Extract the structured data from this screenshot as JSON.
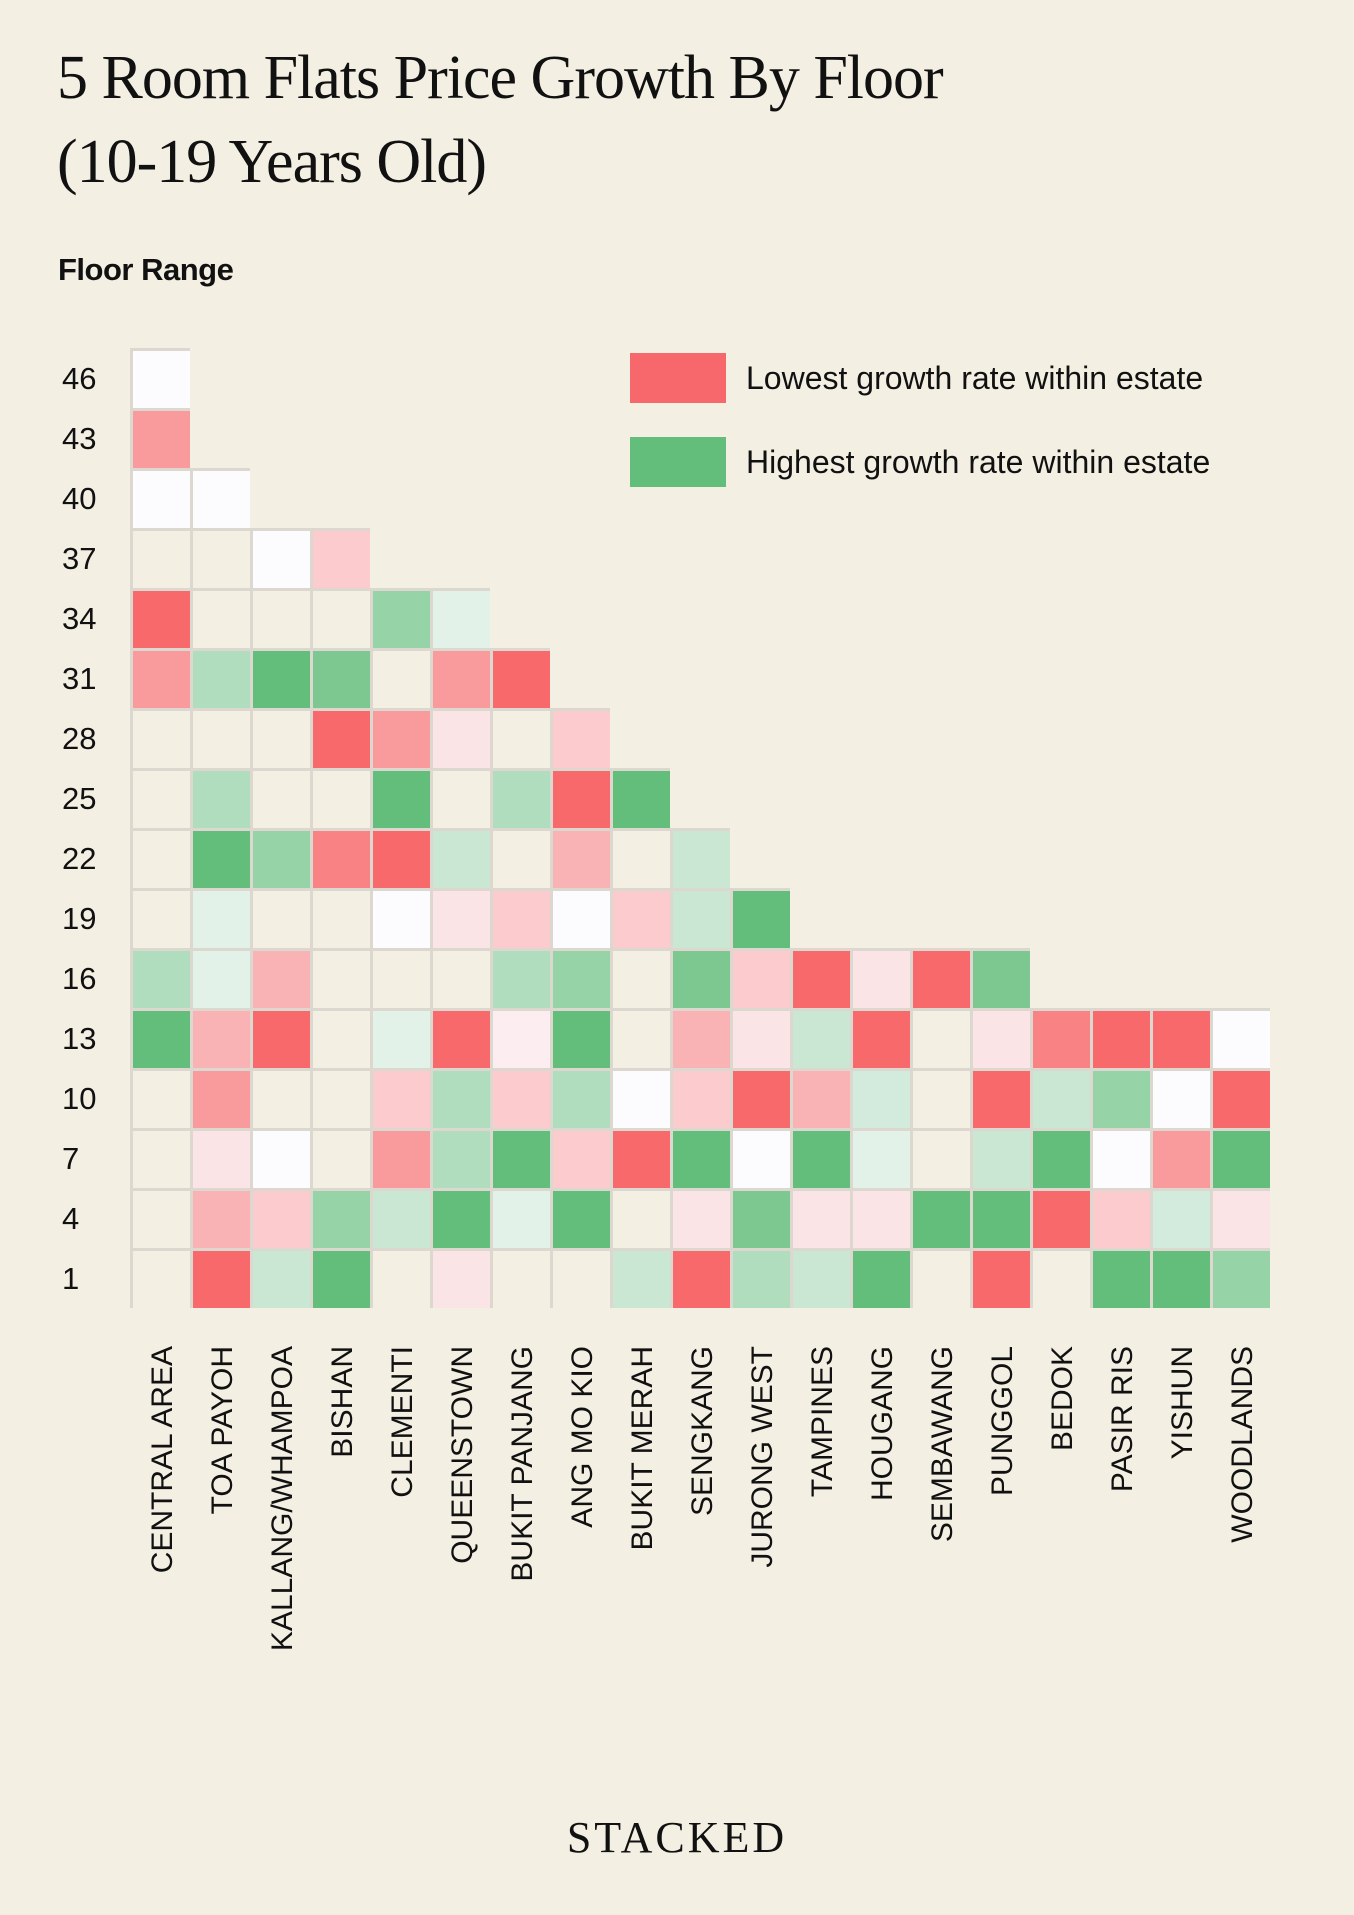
{
  "chart_data": {
    "type": "heatmap",
    "title": "5 Room Flats Price Growth By Floor",
    "subtitle": "(10-19 Years Old)",
    "ylabel": "Floor Range",
    "xlabel": "",
    "x": [
      "CENTRAL AREA",
      "TOA PAYOH",
      "KALLANG/WHAMPOA",
      "BISHAN",
      "CLEMENTI",
      "QUEENSTOWN",
      "BUKIT PANJANG",
      "ANG MO KIO",
      "BUKIT MERAH",
      "SENGKANG",
      "JURONG WEST",
      "TAMPINES",
      "HOUGANG",
      "SEMBAWANG",
      "PUNGGOL",
      "BEDOK",
      "PASIR RIS",
      "YISHUN",
      "WOODLANDS"
    ],
    "y": [
      46,
      43,
      40,
      37,
      34,
      31,
      28,
      25,
      22,
      19,
      16,
      13,
      10,
      7,
      4,
      1
    ],
    "value_scale": "relative growth rate within estate, -3 = lowest (red), +3 = highest (green), 0 = mid (white), \"n\" = no highlight (neutral), null = no data",
    "values": [
      [
        0,
        null,
        null,
        null,
        null,
        null,
        null,
        null,
        null,
        null,
        null,
        null,
        null,
        null,
        null,
        null,
        null,
        null,
        null
      ],
      [
        -2,
        null,
        null,
        null,
        null,
        null,
        null,
        null,
        null,
        null,
        null,
        null,
        null,
        null,
        null,
        null,
        null,
        null,
        null
      ],
      [
        0,
        0,
        null,
        null,
        null,
        null,
        null,
        null,
        null,
        null,
        null,
        null,
        null,
        null,
        null,
        null,
        null,
        null,
        null
      ],
      [
        "n",
        "n",
        0,
        -1,
        null,
        null,
        null,
        null,
        null,
        null,
        null,
        null,
        null,
        null,
        null,
        null,
        null,
        null,
        null
      ],
      [
        -3,
        "n",
        "n",
        "n",
        2,
        0.5,
        null,
        null,
        null,
        null,
        null,
        null,
        null,
        null,
        null,
        null,
        null,
        null,
        null
      ],
      [
        -2,
        1.5,
        3,
        2.5,
        "n",
        -2,
        -3,
        null,
        null,
        null,
        null,
        null,
        null,
        null,
        null,
        null,
        null,
        null,
        null
      ],
      [
        "n",
        "n",
        "n",
        -3,
        -2,
        -0.5,
        "n",
        -1,
        null,
        null,
        null,
        null,
        null,
        null,
        null,
        null,
        null,
        null,
        null
      ],
      [
        "n",
        1.5,
        "n",
        "n",
        3,
        "n",
        1.5,
        -3,
        3,
        null,
        null,
        null,
        null,
        null,
        null,
        null,
        null,
        null,
        null
      ],
      [
        "n",
        3,
        2,
        -2.5,
        -3,
        1,
        "n",
        -1.5,
        "n",
        1,
        null,
        null,
        null,
        null,
        null,
        null,
        null,
        null,
        null
      ],
      [
        "n",
        0.5,
        "n",
        "n",
        0,
        -0.5,
        -1,
        0,
        -1,
        1,
        3,
        null,
        null,
        null,
        null,
        null,
        null,
        null,
        null
      ],
      [
        1.5,
        0.5,
        -1.5,
        "n",
        "n",
        "n",
        1.5,
        2,
        "n",
        2.5,
        -1,
        -3,
        -0.5,
        -3,
        2.5,
        null,
        null,
        null,
        null
      ],
      [
        3,
        -1.5,
        -3,
        "n",
        0.5,
        -3,
        -0.3,
        3,
        "n",
        -1.5,
        -0.5,
        1,
        -3,
        "n",
        -0.5,
        -2.5,
        -3,
        -3,
        0
      ],
      [
        "n",
        -2,
        "n",
        "n",
        -1,
        1.5,
        -1,
        1.5,
        0,
        -1,
        -3,
        -1.5,
        0.8,
        "n",
        -3,
        1,
        2,
        0,
        -3
      ],
      [
        "n",
        -0.5,
        0,
        "n",
        -2,
        1.5,
        3,
        -1,
        -3,
        3,
        0,
        3,
        0.5,
        "n",
        1,
        3,
        0,
        -2,
        3
      ],
      [
        "n",
        -1.5,
        -1,
        2,
        1,
        3,
        0.5,
        3,
        "n",
        -0.5,
        2.5,
        -0.5,
        -0.5,
        3,
        3,
        -3,
        -1,
        0.8,
        -0.5
      ],
      [
        "n",
        -3,
        1,
        3,
        "n",
        -0.5,
        "n",
        "n",
        1,
        -3,
        1.5,
        1,
        3,
        "n",
        -3,
        "n",
        3,
        3,
        2
      ]
    ],
    "legend": [
      {
        "label": "Lowest growth rate within estate",
        "color": "#f7686c"
      },
      {
        "label": "Highest growth rate within estate",
        "color": "#63be7b"
      }
    ],
    "legend_placement": "top-right",
    "colors": {
      "low": "#f8696b",
      "mid": "#fcfcff",
      "high": "#63be7b",
      "neutral": "#f3efe3",
      "grid": "#dcd8cf"
    }
  },
  "brand": "STACKED"
}
